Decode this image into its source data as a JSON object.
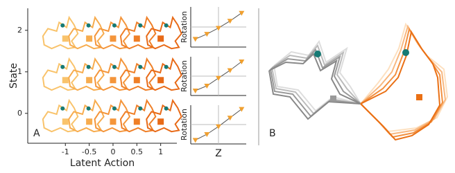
{
  "chart_data": [
    {
      "type": "scatter",
      "panel_label": "A",
      "x_label": "Latent Action",
      "y_label": "State",
      "xlim": [
        -1.79,
        1.34
      ],
      "ylim": [
        -0.72,
        2.53
      ],
      "xticks": [
        -1,
        -0.5,
        0,
        0.5,
        1
      ],
      "yticks": [
        0,
        1,
        2
      ],
      "x": [
        -1,
        -0.5,
        0,
        0.5,
        1,
        -1,
        -0.5,
        0,
        0.5,
        1,
        -1,
        -0.5,
        0,
        0.5,
        1
      ],
      "values": [
        1.8,
        1.8,
        1.8,
        1.8,
        1.8,
        0.8,
        0.8,
        0.8,
        0.8,
        0.8,
        -0.2,
        -0.2,
        -0.2,
        -0.2,
        -0.2
      ],
      "colors": [
        "#f9c36b",
        "#f7ac4e",
        "#f4953a",
        "#ef7f27",
        "#e86a17",
        "#f9c36b",
        "#f7ac4e",
        "#f4953a",
        "#ef7f27",
        "#e86a17",
        "#f9c36b",
        "#f7ac4e",
        "#f4953a",
        "#ef7f27",
        "#e86a17"
      ]
    },
    {
      "type": "line",
      "y_label": "Rotation",
      "xlim": [
        -1.2,
        1.2
      ],
      "ylim": [
        -1,
        1
      ],
      "x": [
        -1,
        -0.5,
        0,
        0.5,
        1
      ],
      "values": [
        -0.6,
        -0.35,
        -0.05,
        0.3,
        0.7
      ],
      "color": "#f0a030"
    },
    {
      "type": "line",
      "y_label": "Rotation",
      "xlim": [
        -1.2,
        1.2
      ],
      "ylim": [
        -1,
        1
      ],
      "x": [
        -1,
        -0.5,
        0,
        0.5,
        1
      ],
      "values": [
        -0.75,
        -0.5,
        -0.1,
        0.3,
        0.75
      ],
      "color": "#f0a030"
    },
    {
      "type": "line",
      "y_label": "Rotation",
      "x_label": "Z",
      "xlim": [
        -1.2,
        1.2
      ],
      "ylim": [
        -1,
        1
      ],
      "x": [
        -1,
        -0.5,
        0,
        0.5,
        1
      ],
      "values": [
        -0.8,
        -0.5,
        -0.1,
        0.35,
        0.8
      ],
      "color": "#f0a030"
    }
  ],
  "panel_b": {
    "label": "B"
  }
}
